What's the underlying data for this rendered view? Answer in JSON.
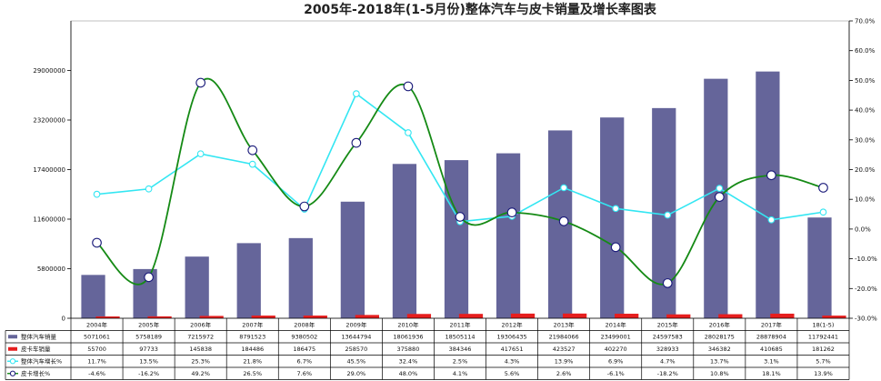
{
  "chart_data": {
    "type": "bar",
    "title": "2005年-2018年(1-5月份)整体汽车与皮卡销量及增长率图表",
    "categories": [
      "2004年",
      "2005年",
      "2006年",
      "2007年",
      "2008年",
      "2009年",
      "2010年",
      "2011年",
      "2012年",
      "2013年",
      "2014年",
      "2015年",
      "2016年",
      "2017年",
      "18(1-5)"
    ],
    "y_left": {
      "ticks": [
        0,
        5800000,
        11600000,
        17400000,
        23200000,
        29000000
      ],
      "labels": [
        "0",
        "5800000",
        "11600000",
        "17400000",
        "23200000",
        "29000000"
      ],
      "ylim": [
        0,
        34800000
      ]
    },
    "y_right": {
      "ticks": [
        -30,
        -20,
        -10,
        0,
        10,
        20,
        30,
        40,
        50,
        60,
        70
      ],
      "labels": [
        "-30.0%",
        "-20.0%",
        "-10.0%",
        "0.0%",
        "10.0%",
        "20.0%",
        "30.0%",
        "40.0%",
        "50.0%",
        "60.0%",
        "70.0%"
      ],
      "ylim": [
        -30,
        70
      ]
    },
    "series": [
      {
        "name": "整体汽车销量",
        "kind": "bar",
        "axis": "left",
        "color": "#65659a",
        "values": [
          5071061,
          5758189,
          7215972,
          8791523,
          9380502,
          13644794,
          18061936,
          18505114,
          19306435,
          21984066,
          23499001,
          24597583,
          28028175,
          28878904,
          11792441
        ],
        "labels": [
          "5071061",
          "5758189",
          "7215972",
          "8791523",
          "9380502",
          "13644794",
          "18061936",
          "18505114",
          "19306435",
          "21984066",
          "23499001",
          "24597583",
          "28028175",
          "28878904",
          "11792441"
        ]
      },
      {
        "name": "皮卡车销量",
        "kind": "bar",
        "axis": "left",
        "color": "#e61e1e",
        "values": [
          55700,
          97733,
          145838,
          184486,
          186475,
          258570,
          375880,
          384346,
          417651,
          423527,
          402270,
          328933,
          346382,
          410685,
          181262
        ],
        "labels": [
          "55700",
          "97733",
          "145838",
          "184486",
          "186475",
          "258570",
          "375880",
          "384346",
          "417651",
          "423527",
          "402270",
          "328933",
          "346382",
          "410685",
          "181262"
        ]
      },
      {
        "name": "整体汽车增长%",
        "kind": "line",
        "axis": "right",
        "color": "#33e6f2",
        "values": [
          11.7,
          13.5,
          25.3,
          21.8,
          6.7,
          45.5,
          32.4,
          2.5,
          4.3,
          13.9,
          6.9,
          4.7,
          13.7,
          3.1,
          5.7
        ],
        "labels": [
          "11.7%",
          "13.5%",
          "25.3%",
          "21.8%",
          "6.7%",
          "45.5%",
          "32.4%",
          "2.5%",
          "4.3%",
          "13.9%",
          "6.9%",
          "4.7%",
          "13.7%",
          "3.1%",
          "5.7%"
        ]
      },
      {
        "name": "皮卡增长%",
        "kind": "line",
        "axis": "right",
        "color": "#158a15",
        "values": [
          -4.6,
          -16.2,
          49.2,
          26.5,
          7.6,
          29.0,
          48.0,
          4.1,
          5.6,
          2.6,
          -6.1,
          -18.2,
          10.8,
          18.1,
          13.9
        ],
        "labels": [
          "-4.6%",
          "-16.2%",
          "49.2%",
          "26.5%",
          "7.6%",
          "29.0%",
          "48.0%",
          "4.1%",
          "5.6%",
          "2.6%",
          "-6.1%",
          "-18.2%",
          "10.8%",
          "18.1%",
          "13.9%"
        ]
      }
    ]
  }
}
